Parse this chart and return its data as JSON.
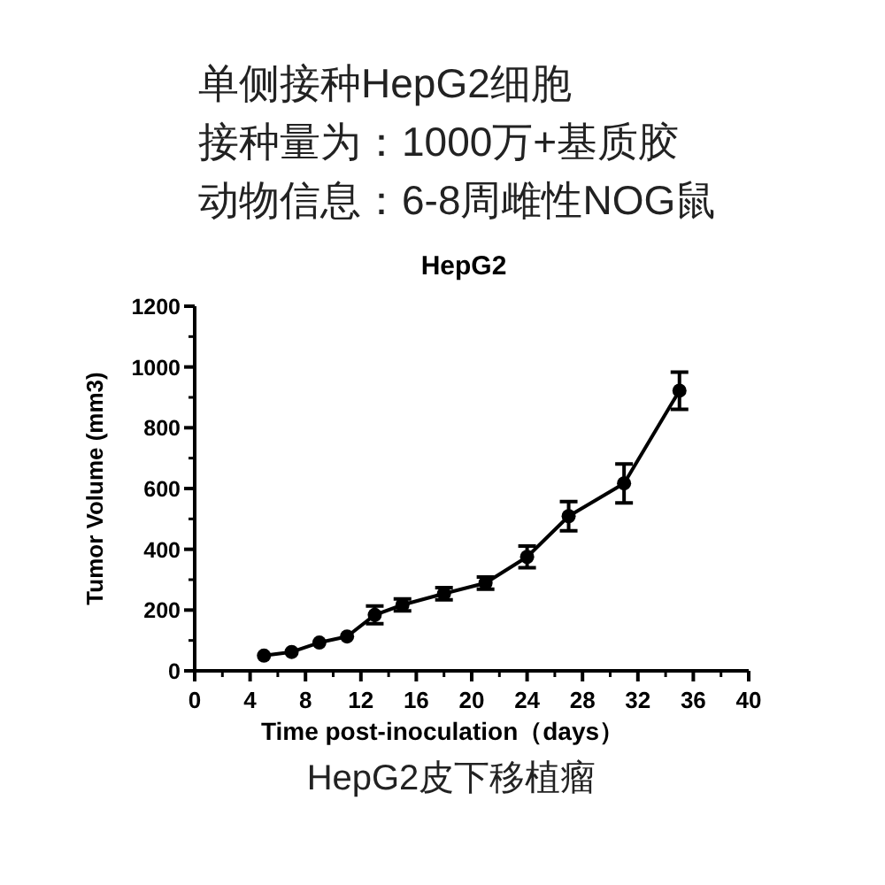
{
  "chart_data": {
    "type": "line",
    "title": "HepG2",
    "xlabel": "Time post-inoculation（days）",
    "ylabel": "Tumor Volume (mm3)",
    "annotations": [
      "单侧接种HepG2细胞",
      "接种量为：1000万+基质胶",
      "动物信息：6-8周雌性NOG鼠",
      "HepG2皮下移植瘤"
    ],
    "x": [
      5,
      7,
      9,
      11,
      13,
      15,
      18,
      21,
      24,
      27,
      31,
      35
    ],
    "series": [
      {
        "color": "#000000",
        "values": [
          50,
          62,
          93,
          113,
          184,
          217,
          254,
          289,
          375,
          509,
          617,
          922
        ],
        "errors": [
          null,
          null,
          null,
          null,
          29,
          20,
          20,
          20,
          36,
          48,
          64,
          61
        ]
      }
    ],
    "xlim": [
      0,
      40
    ],
    "xticks": [
      0,
      4,
      8,
      12,
      16,
      20,
      24,
      28,
      32,
      36,
      40
    ],
    "ylim": [
      0,
      1200
    ],
    "yticks": [
      0,
      200,
      400,
      600,
      800,
      1000,
      1200
    ],
    "grid": false,
    "marker": "circle",
    "line_style": "solid"
  }
}
